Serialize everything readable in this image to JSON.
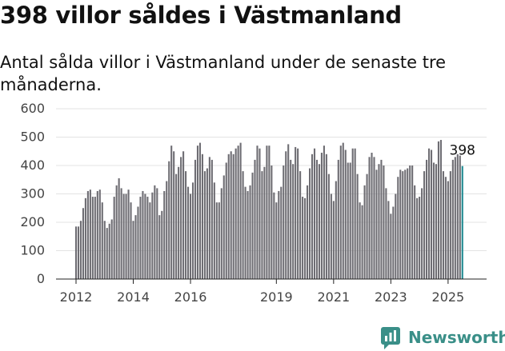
{
  "title": "398 villor såldes i Västmanland",
  "subtitle": "Antal sålda villor i Västmanland under de senaste tre månaderna.",
  "brand": "Newsworthy",
  "colors": {
    "bar": "#6e6d73",
    "highlight": "#1f8a92",
    "brand": "#3a8f88"
  },
  "chart_data": {
    "type": "bar",
    "ylim": [
      0,
      600
    ],
    "yticks": [
      0,
      100,
      200,
      300,
      400,
      500,
      600
    ],
    "xticks": [
      "2012",
      "2014",
      "2016",
      "2019",
      "2021",
      "2023",
      "2025"
    ],
    "grid": true,
    "start": "2012-01",
    "end": "2025-09",
    "last_label": "398",
    "values": [
      185,
      185,
      205,
      250,
      285,
      310,
      315,
      290,
      290,
      310,
      315,
      270,
      205,
      180,
      195,
      210,
      290,
      330,
      355,
      320,
      300,
      300,
      315,
      270,
      205,
      225,
      255,
      290,
      310,
      300,
      290,
      270,
      305,
      330,
      320,
      225,
      240,
      310,
      345,
      415,
      470,
      450,
      370,
      395,
      430,
      450,
      380,
      325,
      300,
      340,
      420,
      470,
      480,
      440,
      380,
      390,
      430,
      420,
      340,
      270,
      270,
      320,
      365,
      410,
      440,
      450,
      440,
      460,
      470,
      480,
      380,
      325,
      310,
      330,
      375,
      420,
      470,
      460,
      380,
      395,
      470,
      470,
      400,
      305,
      270,
      310,
      325,
      400,
      450,
      475,
      420,
      405,
      465,
      460,
      380,
      290,
      285,
      330,
      390,
      440,
      460,
      420,
      405,
      445,
      470,
      440,
      370,
      300,
      275,
      345,
      420,
      470,
      480,
      455,
      410,
      410,
      460,
      460,
      370,
      270,
      260,
      330,
      370,
      430,
      445,
      430,
      385,
      405,
      420,
      400,
      320,
      275,
      230,
      255,
      300,
      360,
      385,
      380,
      385,
      390,
      400,
      400,
      330,
      285,
      290,
      320,
      380,
      420,
      460,
      455,
      410,
      405,
      485,
      490,
      380,
      360,
      345,
      380,
      420,
      430,
      440,
      435,
      398
    ]
  }
}
